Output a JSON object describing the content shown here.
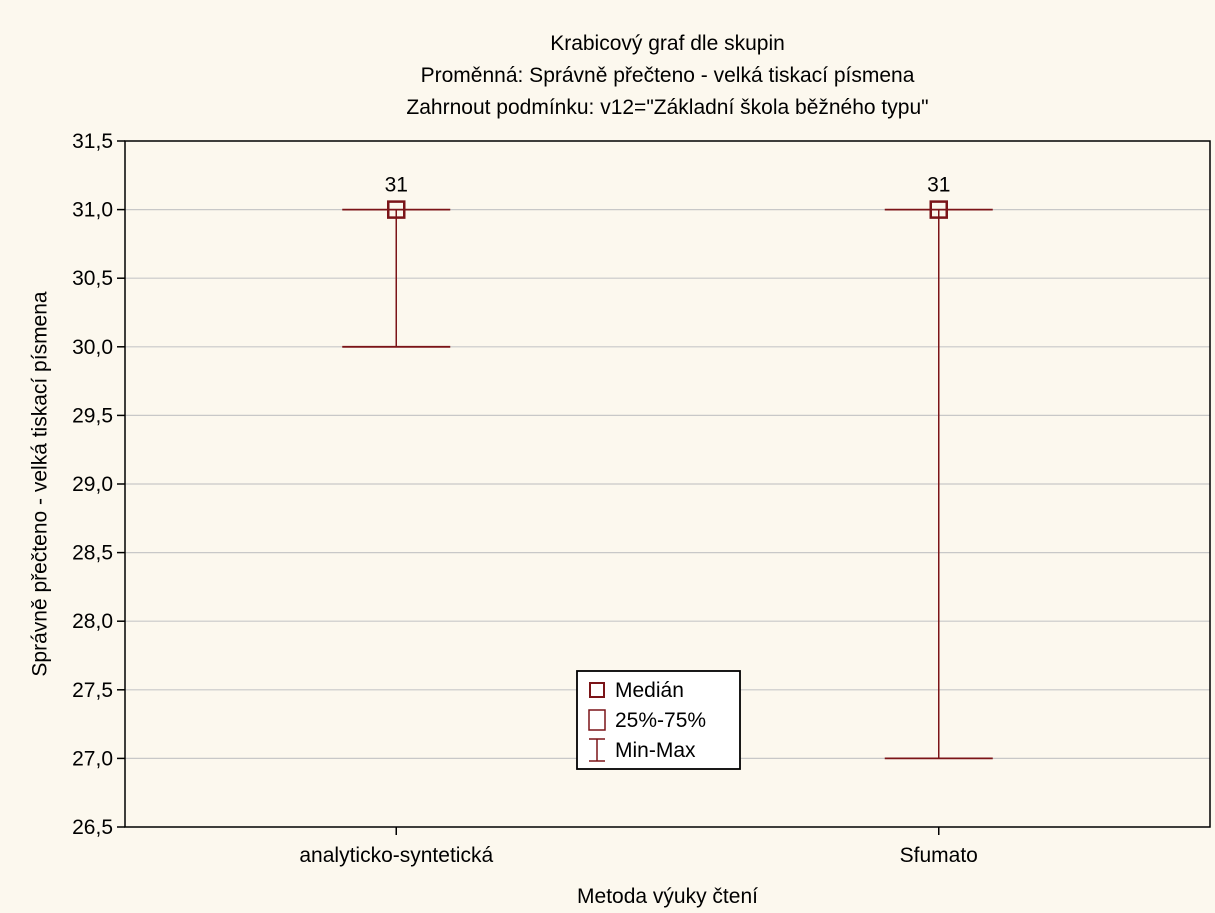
{
  "chart_data": {
    "type": "box",
    "title_lines": [
      "Krabicový graf dle skupin",
      "Proměnná: Správně přečteno - velká tiskací písmena",
      "Zahrnout podmínku: v12=\"Základní škola běžného typu\""
    ],
    "xlabel": "Metoda výuky čtení",
    "ylabel": "Správně přečteno - velká tiskací písmena",
    "ylim": [
      26.5,
      31.5
    ],
    "yticks": [
      26.5,
      27.0,
      27.5,
      28.0,
      28.5,
      29.0,
      29.5,
      30.0,
      30.5,
      31.0,
      31.5
    ],
    "ytick_labels": [
      "26,5",
      "27,0",
      "27,5",
      "28,0",
      "28,5",
      "29,0",
      "29,5",
      "30,0",
      "30,5",
      "31,0",
      "31,5"
    ],
    "grid": true,
    "colors": {
      "series": "#7b1418",
      "grid": "#c8c8c8",
      "frame": "#000000"
    },
    "categories": [
      "analyticko-syntetická",
      "Sfumato"
    ],
    "boxes": [
      {
        "category": "analyticko-syntetická",
        "median": 31,
        "q1": 31,
        "q3": 31,
        "min": 30,
        "max": 31,
        "median_label": "31"
      },
      {
        "category": "Sfumato",
        "median": 31,
        "q1": 31,
        "q3": 31,
        "min": 27,
        "max": 31,
        "median_label": "31"
      }
    ],
    "legend": {
      "placement": "bottom-center",
      "entries": [
        "Medián",
        "25%-75%",
        "Min-Max"
      ]
    }
  }
}
